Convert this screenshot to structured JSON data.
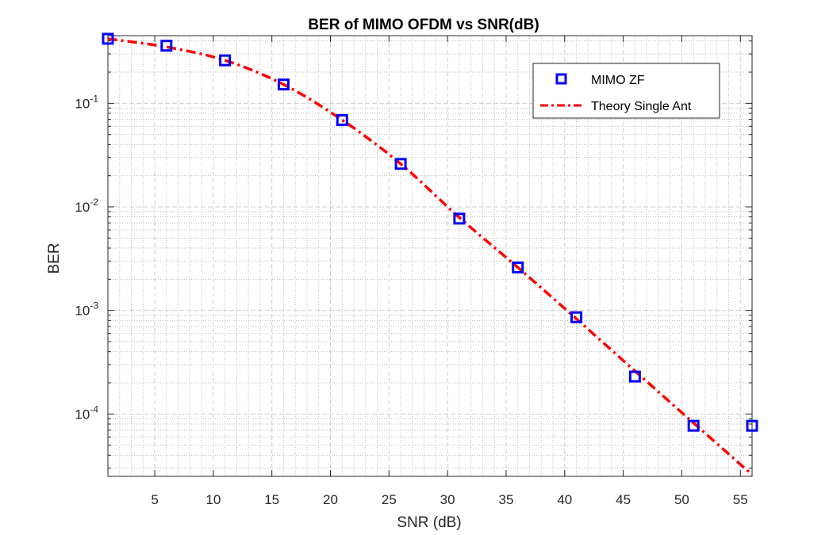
{
  "chart_data": {
    "type": "line",
    "title": "BER of MIMO OFDM vs SNR(dB)",
    "xlabel": "SNR (dB)",
    "ylabel": "BER",
    "xscale": "linear",
    "yscale": "log",
    "xlim": [
      1,
      56
    ],
    "ylim": [
      2.5e-05,
      0.45
    ],
    "grid": true,
    "minor_grid": true,
    "legend_position": "top-right",
    "x_ticks": [
      5,
      10,
      15,
      20,
      25,
      30,
      35,
      40,
      45,
      50,
      55
    ],
    "x_tick_labels": [
      "5",
      "10",
      "15",
      "20",
      "25",
      "30",
      "35",
      "40",
      "45",
      "50",
      "55"
    ],
    "y_ticks": [
      0.0001,
      0.001,
      0.01,
      0.1
    ],
    "y_tick_labels": [
      {
        "base": "10",
        "exp": "-4"
      },
      {
        "base": "10",
        "exp": "-3"
      },
      {
        "base": "10",
        "exp": "-2"
      },
      {
        "base": "10",
        "exp": "-1"
      }
    ],
    "series": [
      {
        "name": "MIMO ZF",
        "style": "markers",
        "marker": "square",
        "color": "#0000ff",
        "x": [
          1,
          6,
          11,
          16,
          21,
          26,
          31,
          36,
          41,
          46,
          51,
          56
        ],
        "y": [
          0.42,
          0.36,
          0.26,
          0.152,
          0.069,
          0.026,
          0.0077,
          0.0026,
          0.00086,
          0.00023,
          7.7e-05,
          7.7e-05
        ]
      },
      {
        "name": "Theory Single Ant",
        "style": "dash-dot line",
        "color": "#ff0000",
        "x": [
          1,
          6,
          11,
          16,
          21,
          26,
          31,
          36,
          41,
          46,
          51,
          56
        ],
        "y": [
          0.42,
          0.35,
          0.26,
          0.152,
          0.069,
          0.026,
          0.0079,
          0.0026,
          0.00083,
          0.00026,
          8.2e-05,
          2.6e-05
        ]
      }
    ]
  }
}
